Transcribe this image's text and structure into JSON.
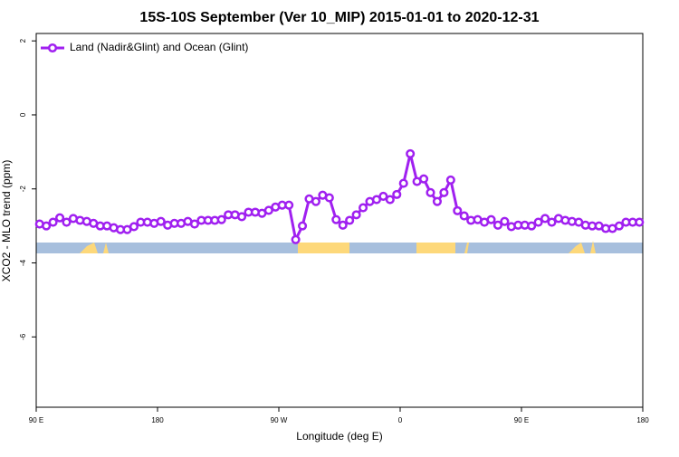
{
  "chart_data": {
    "type": "line",
    "title": "15S-10S September (Ver 10_MIP)   2015-01-01 to 2020-12-31",
    "xlabel": "Longitude (deg E)",
    "ylabel": "XCO2 - MLO trend (ppm)",
    "xlim": [
      90,
      540
    ],
    "xticks": [
      {
        "value": 90,
        "label": "90 E"
      },
      {
        "value": 180,
        "label": "180"
      },
      {
        "value": 270,
        "label": "90 W"
      },
      {
        "value": 360,
        "label": "0"
      },
      {
        "value": 450,
        "label": "90 E"
      },
      {
        "value": 540,
        "label": "180"
      }
    ],
    "ylim": [
      -7.9,
      2.2
    ],
    "yticks": [
      2,
      0,
      -2,
      -4,
      -6
    ],
    "legend": "top-left",
    "x": [
      92.5,
      97.5,
      102.5,
      107.5,
      112.5,
      117.5,
      122.5,
      127.5,
      132.5,
      137.5,
      142.5,
      147.5,
      152.5,
      157.5,
      162.5,
      167.5,
      172.5,
      177.5,
      182.5,
      187.5,
      192.5,
      197.5,
      202.5,
      207.5,
      212.5,
      217.5,
      222.5,
      227.5,
      232.5,
      237.5,
      242.5,
      247.5,
      252.5,
      257.5,
      262.5,
      267.5,
      272.5,
      277.5,
      282.5,
      287.5,
      292.5,
      297.5,
      302.5,
      307.5,
      312.5,
      317.5,
      322.5,
      327.5,
      332.5,
      337.5,
      342.5,
      347.5,
      352.5,
      357.5,
      362.5,
      367.5,
      372.5,
      377.5,
      382.5,
      387.5,
      392.5,
      397.5,
      402.5,
      407.5,
      412.5,
      417.5,
      422.5,
      427.5,
      432.5,
      437.5,
      442.5,
      447.5,
      452.5,
      457.5,
      462.5,
      467.5,
      472.5,
      477.5,
      482.5,
      487.5,
      492.5,
      497.5,
      502.5,
      507.5,
      512.5,
      517.5,
      522.5,
      527.5,
      532.5,
      537.5
    ],
    "series": [
      {
        "name": "Land (Nadir&Glint) and Ocean (Glint)",
        "color": "#a020f0",
        "values": [
          -2.95,
          -3.0,
          -2.9,
          -2.78,
          -2.9,
          -2.8,
          -2.85,
          -2.88,
          -2.93,
          -3.0,
          -3.0,
          -3.05,
          -3.1,
          -3.1,
          -3.02,
          -2.9,
          -2.9,
          -2.93,
          -2.88,
          -2.98,
          -2.93,
          -2.93,
          -2.88,
          -2.95,
          -2.85,
          -2.85,
          -2.85,
          -2.83,
          -2.7,
          -2.7,
          -2.75,
          -2.63,
          -2.63,
          -2.66,
          -2.58,
          -2.49,
          -2.44,
          -2.44,
          -3.37,
          -3.0,
          -2.27,
          -2.34,
          -2.17,
          -2.24,
          -2.83,
          -2.98,
          -2.85,
          -2.7,
          -2.51,
          -2.34,
          -2.29,
          -2.2,
          -2.29,
          -2.15,
          -1.85,
          -1.05,
          -1.8,
          -1.73,
          -2.1,
          -2.34,
          -2.1,
          -1.76,
          -2.59,
          -2.73,
          -2.85,
          -2.83,
          -2.9,
          -2.83,
          -2.98,
          -2.88,
          -3.02,
          -2.98,
          -2.98,
          -3.0,
          -2.9,
          -2.8,
          -2.9,
          -2.8,
          -2.85,
          -2.88,
          -2.9,
          -2.98,
          -3.0,
          -3.0,
          -3.07,
          -3.07,
          -3.0,
          -2.9,
          -2.9,
          -2.9
        ]
      }
    ]
  }
}
